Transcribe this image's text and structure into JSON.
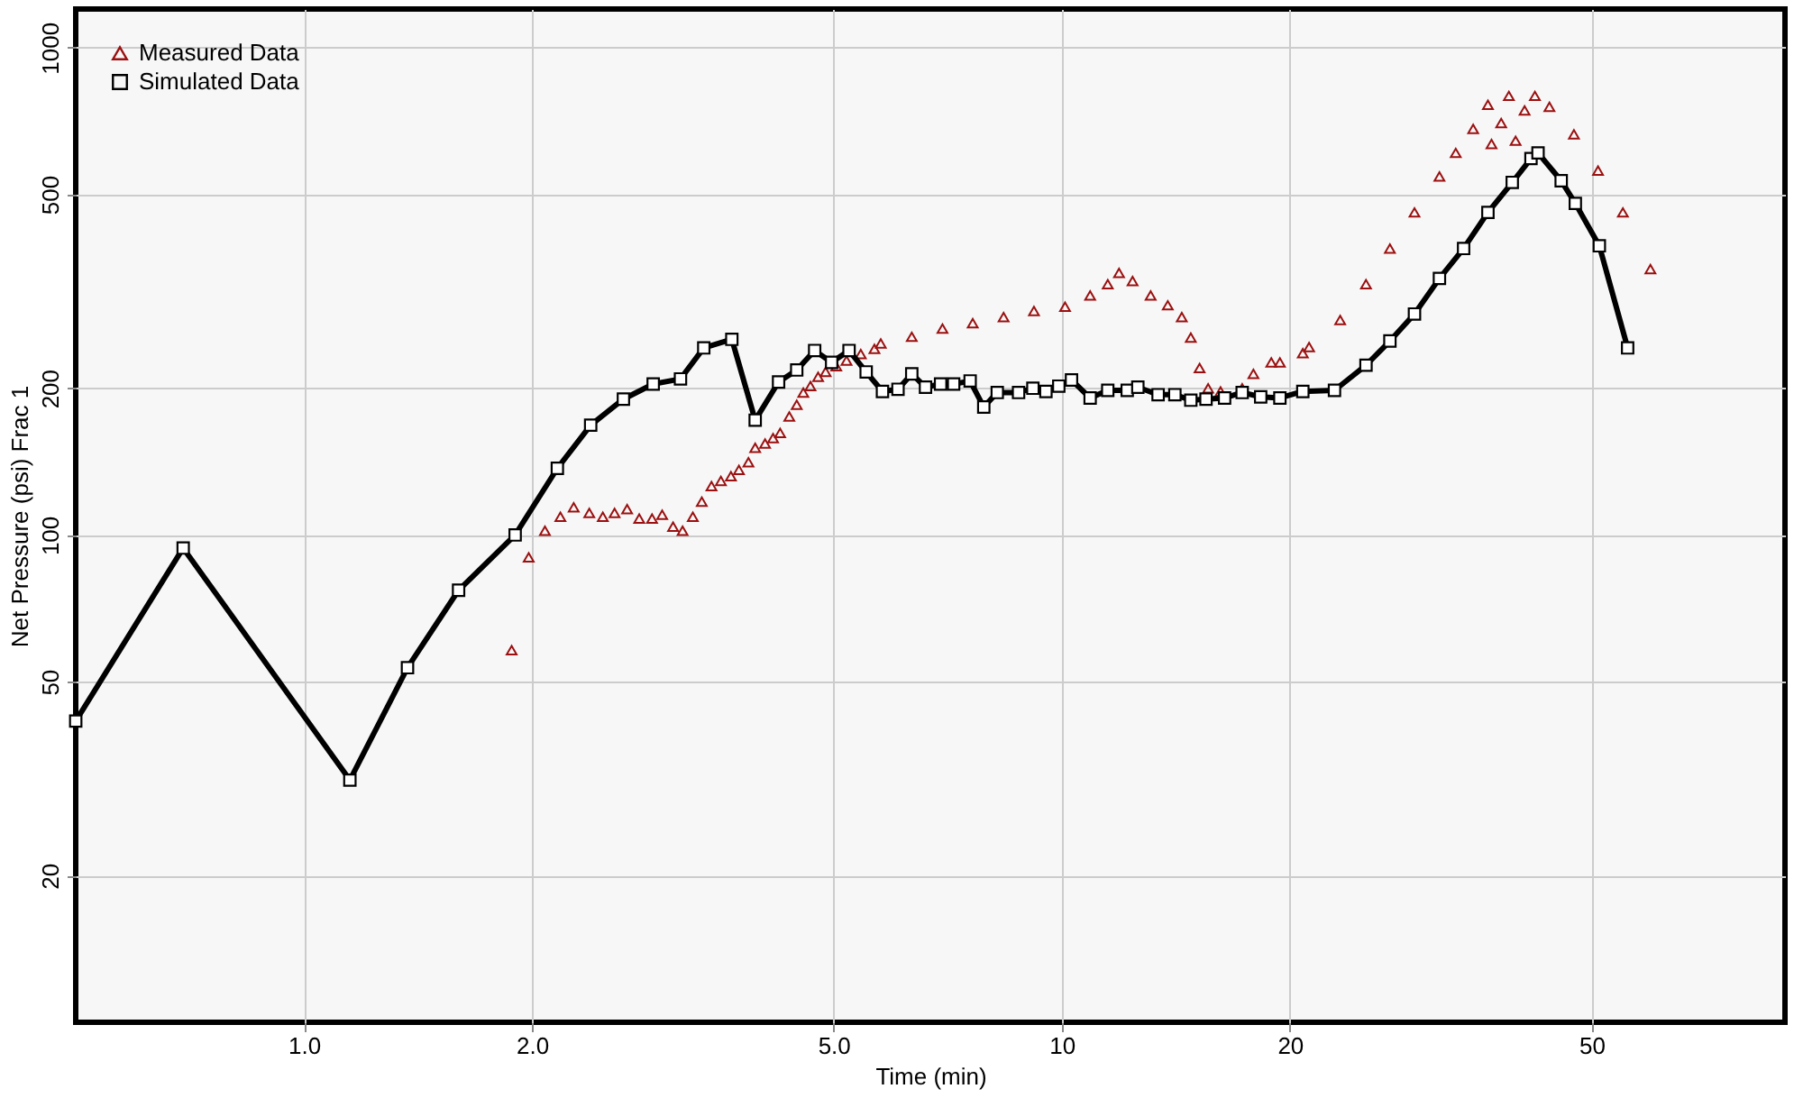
{
  "chart_data": {
    "type": "line",
    "xlabel": "Time (min)",
    "ylabel": "Net Pressure (psi) Frac 1",
    "log": "xy",
    "grid": true,
    "legend": "top left",
    "xlim": [
      0.5,
      90
    ],
    "ylim": [
      10,
      1200
    ],
    "xticks": [
      {
        "value": 1,
        "label": "1.0"
      },
      {
        "value": 2,
        "label": "2.0"
      },
      {
        "value": 5,
        "label": "5.0"
      },
      10,
      20,
      50
    ],
    "yticks": [
      20,
      50,
      100,
      200,
      500,
      {
        "value": 1000,
        "label": "1000"
      }
    ],
    "series": [
      {
        "name": "Measured Data",
        "type": "scatter",
        "marker": "triangle",
        "color": "#9b1010",
        "x": [
          1.88,
          1.98,
          2.08,
          2.18,
          2.27,
          2.38,
          2.48,
          2.57,
          2.67,
          2.77,
          2.88,
          2.97,
          3.07,
          3.16,
          3.26,
          3.35,
          3.45,
          3.55,
          3.66,
          3.75,
          3.86,
          3.94,
          4.06,
          4.16,
          4.25,
          4.37,
          4.47,
          4.56,
          4.66,
          4.77,
          4.88,
          5.04,
          5.2,
          5.43,
          5.66,
          5.77,
          6.34,
          6.96,
          7.63,
          8.38,
          9.19,
          10.1,
          10.9,
          11.5,
          11.9,
          12.4,
          13.1,
          13.8,
          14.4,
          14.8,
          15.2,
          15.6,
          16.2,
          17.3,
          17.9,
          18.9,
          19.4,
          20.8,
          21.2,
          23.3,
          25.2,
          27.1,
          29.2,
          31.5,
          33.1,
          34.9,
          36.5,
          36.9,
          38,
          38.9,
          39.7,
          40.8,
          42.1,
          44,
          47.4,
          51,
          55,
          59.8
        ],
        "values": [
          58,
          90,
          102,
          109,
          114,
          111,
          109,
          111,
          113,
          108,
          108,
          110,
          104,
          102,
          109,
          117,
          126,
          129,
          132,
          136,
          141,
          151,
          154,
          158,
          162,
          175,
          185,
          196,
          202,
          211,
          216,
          222,
          228,
          235,
          241,
          247,
          255,
          265,
          272,
          280,
          288,
          294,
          310,
          327,
          345,
          332,
          310,
          296,
          280,
          254,
          220,
          200,
          197,
          200,
          214,
          226,
          226,
          236,
          243,
          276,
          327,
          387,
          459,
          544,
          608,
          681,
          763,
          634,
          700,
          796,
          644,
          743,
          796,
          756,
          664,
          559,
          459,
          351
        ]
      },
      {
        "name": "Simulated Data",
        "marker": "square",
        "line_style": "solid",
        "color": "#000000",
        "x": [
          0.5,
          0.693,
          1.15,
          1.37,
          1.6,
          1.9,
          2.16,
          2.39,
          2.64,
          2.89,
          3.14,
          3.37,
          3.67,
          3.94,
          4.23,
          4.47,
          4.72,
          4.97,
          5.24,
          5.52,
          5.8,
          6.08,
          6.34,
          6.61,
          6.92,
          7.2,
          7.57,
          7.89,
          8.22,
          8.77,
          9.16,
          9.53,
          9.91,
          10.3,
          10.9,
          11.5,
          12.2,
          12.6,
          13.4,
          14.1,
          14.8,
          15.5,
          16.4,
          17.3,
          18.3,
          19.4,
          20.8,
          22.9,
          25.2,
          27.1,
          29.2,
          31.5,
          33.9,
          36.5,
          39.3,
          41.6,
          42.5,
          45.6,
          47.6,
          51.2,
          55.8
        ],
        "values": [
          41.5,
          94,
          31.4,
          53.4,
          77,
          100,
          137,
          168,
          190,
          204,
          209,
          242,
          252,
          172,
          206,
          218,
          239,
          226,
          239,
          216,
          197,
          199,
          214,
          201,
          204,
          204,
          207,
          183,
          196,
          196,
          200,
          197,
          202,
          208,
          191,
          198,
          198,
          201,
          194,
          194,
          189,
          190,
          191,
          196,
          192,
          191,
          197,
          198,
          223,
          250,
          284,
          336,
          387,
          459,
          529,
          592,
          608,
          533,
          479,
          392,
          242
        ]
      }
    ]
  }
}
